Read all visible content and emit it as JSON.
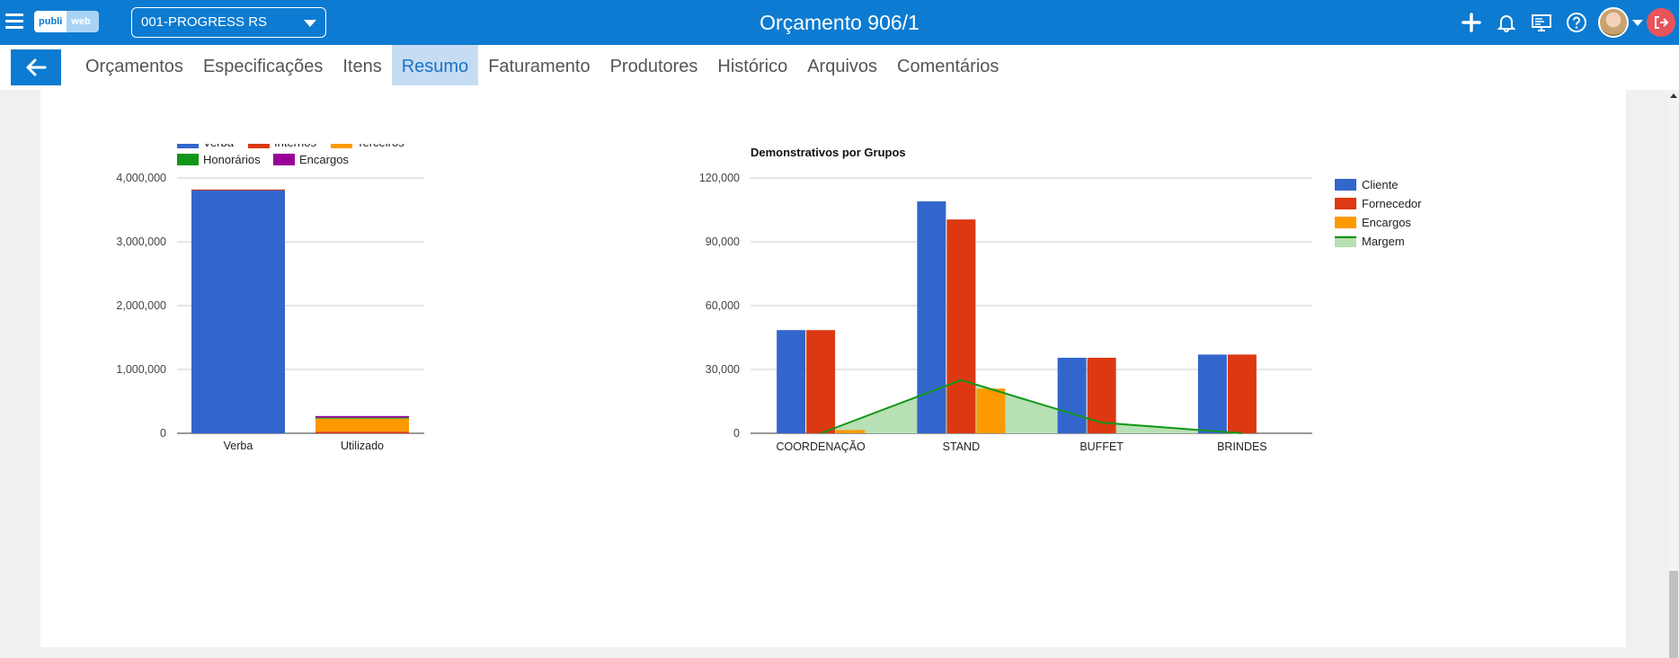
{
  "header": {
    "logo_part1": "publi",
    "logo_part2": "web",
    "org_selected": "001-PROGRESS RS",
    "title": "Orçamento 906/1",
    "icons": [
      "plus-icon",
      "bell-icon",
      "monitor-icon",
      "help-icon",
      "avatar",
      "logout-icon"
    ]
  },
  "tabs": [
    {
      "label": "Orçamentos",
      "active": false
    },
    {
      "label": "Especificações",
      "active": false
    },
    {
      "label": "Itens",
      "active": false
    },
    {
      "label": "Resumo",
      "active": true
    },
    {
      "label": "Faturamento",
      "active": false
    },
    {
      "label": "Produtores",
      "active": false
    },
    {
      "label": "Histórico",
      "active": false
    },
    {
      "label": "Arquivos",
      "active": false
    },
    {
      "label": "Comentários",
      "active": false
    }
  ],
  "chart_data": [
    {
      "type": "bar",
      "stacked": true,
      "title": "",
      "categories": [
        "Verba",
        "Utilizado"
      ],
      "series": [
        {
          "name": "Verba",
          "color": "#3366cc",
          "values": [
            3810000,
            0
          ]
        },
        {
          "name": "Internos",
          "color": "#dc3912",
          "values": [
            10000,
            25000
          ]
        },
        {
          "name": "Terceiros",
          "color": "#ff9900",
          "values": [
            0,
            205000
          ]
        },
        {
          "name": "Honorários",
          "color": "#109618",
          "values": [
            0,
            15000
          ]
        },
        {
          "name": "Encargos",
          "color": "#990099",
          "values": [
            0,
            25000
          ]
        }
      ],
      "ylim": [
        0,
        4000000
      ],
      "yticks": [
        "0",
        "1,000,000",
        "2,000,000",
        "3,000,000",
        "4,000,000"
      ],
      "ytick_values": [
        0,
        1000000,
        2000000,
        3000000,
        4000000
      ],
      "legend": "top",
      "grid": true
    },
    {
      "type": "bar",
      "title": "Demonstrativos por Grupos",
      "categories": [
        "COORDENAÇÃO",
        "STAND",
        "BUFFET",
        "BRINDES"
      ],
      "series": [
        {
          "name": "Cliente",
          "color": "#3366cc",
          "values": [
            48500,
            109000,
            35500,
            37000
          ]
        },
        {
          "name": "Fornecedor",
          "color": "#dc3912",
          "values": [
            48500,
            100500,
            35500,
            37000
          ]
        },
        {
          "name": "Encargos",
          "color": "#ff9900",
          "values": [
            1500,
            21000,
            0,
            0
          ]
        }
      ],
      "area_series": {
        "name": "Margem",
        "color": "#109618",
        "fill": "#b7e0b4",
        "values": [
          0,
          25000,
          5000,
          0
        ]
      },
      "ylim": [
        0,
        120000
      ],
      "yticks": [
        "0",
        "30,000",
        "60,000",
        "90,000",
        "120,000"
      ],
      "ytick_values": [
        0,
        30000,
        60000,
        90000,
        120000
      ],
      "legend": "right",
      "grid": true
    }
  ]
}
